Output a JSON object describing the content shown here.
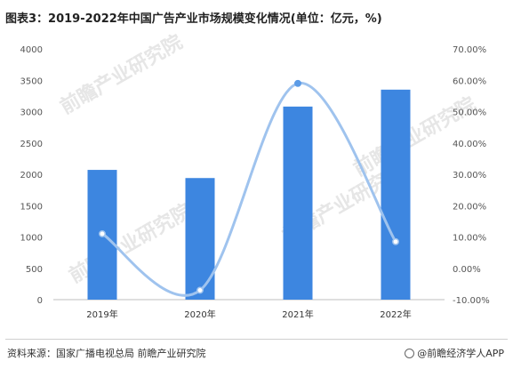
{
  "header": {
    "title": "图表3：2019-2022年中国广告产业市场规模变化情况(单位：亿元，%)"
  },
  "chart_data": {
    "type": "bar",
    "categories": [
      "2019年",
      "2020年",
      "2021年",
      "2022年"
    ],
    "series": [
      {
        "values": [
          2070,
          1940,
          3080,
          3350
        ],
        "color": "#3d86e0"
      },
      {
        "values": [
          11,
          -7,
          59,
          8.5
        ],
        "color": "#9fc3ee",
        "line": "smooth",
        "axis": "right"
      }
    ],
    "y_left": {
      "ticks": [
        "0",
        "500",
        "1000",
        "1500",
        "2000",
        "2500",
        "3000",
        "3500",
        "4000"
      ],
      "ylim": [
        0,
        4000
      ]
    },
    "y_right": {
      "ticks": [
        "-10.00%",
        "0.00%",
        "10.00%",
        "20.00%",
        "30.00%",
        "40.00%",
        "50.00%",
        "60.00%",
        "70.00%"
      ],
      "ylim": [
        -10,
        70
      ]
    },
    "grid": false
  },
  "footer": {
    "source": "资料来源：国家广播电视总局 前瞻产业研究院",
    "brand": "@前瞻经济学人APP"
  },
  "watermark": "前瞻产业研究院"
}
